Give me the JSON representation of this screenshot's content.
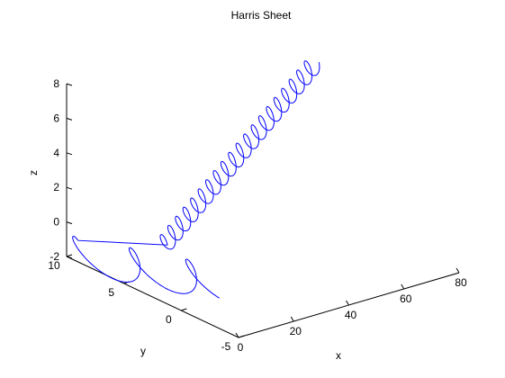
{
  "chart_data": {
    "type": "line",
    "projection": "3d",
    "title": "Harris Sheet",
    "xlabel": "x",
    "ylabel": "y",
    "zlabel": "z",
    "xlim": [
      0,
      80
    ],
    "ylim": [
      -5,
      10
    ],
    "zlim": [
      -2,
      8
    ],
    "xticks": [
      "0",
      "20",
      "40",
      "60",
      "80"
    ],
    "yticks": [
      "-5",
      "0",
      "5",
      "10"
    ],
    "zticks": [
      "-2",
      "0",
      "2",
      "4",
      "6",
      "8"
    ],
    "grid": false,
    "series": [
      {
        "description_free": true,
        "color": "#0000ff",
        "helix": {
          "turns": 20,
          "x_range": [
            10,
            65
          ],
          "y_center": 4,
          "z_range": [
            0,
            8
          ],
          "radius": 0.25
        },
        "wave": {
          "x_range": [
            0,
            18
          ],
          "y_range": [
            9,
            1
          ],
          "z_offset": -1.6,
          "amplitude": 1.5,
          "cycles": 2.5
        }
      }
    ],
    "colors": {
      "axes": "#000000",
      "line": "#0000ff",
      "background": "#ffffff"
    }
  }
}
